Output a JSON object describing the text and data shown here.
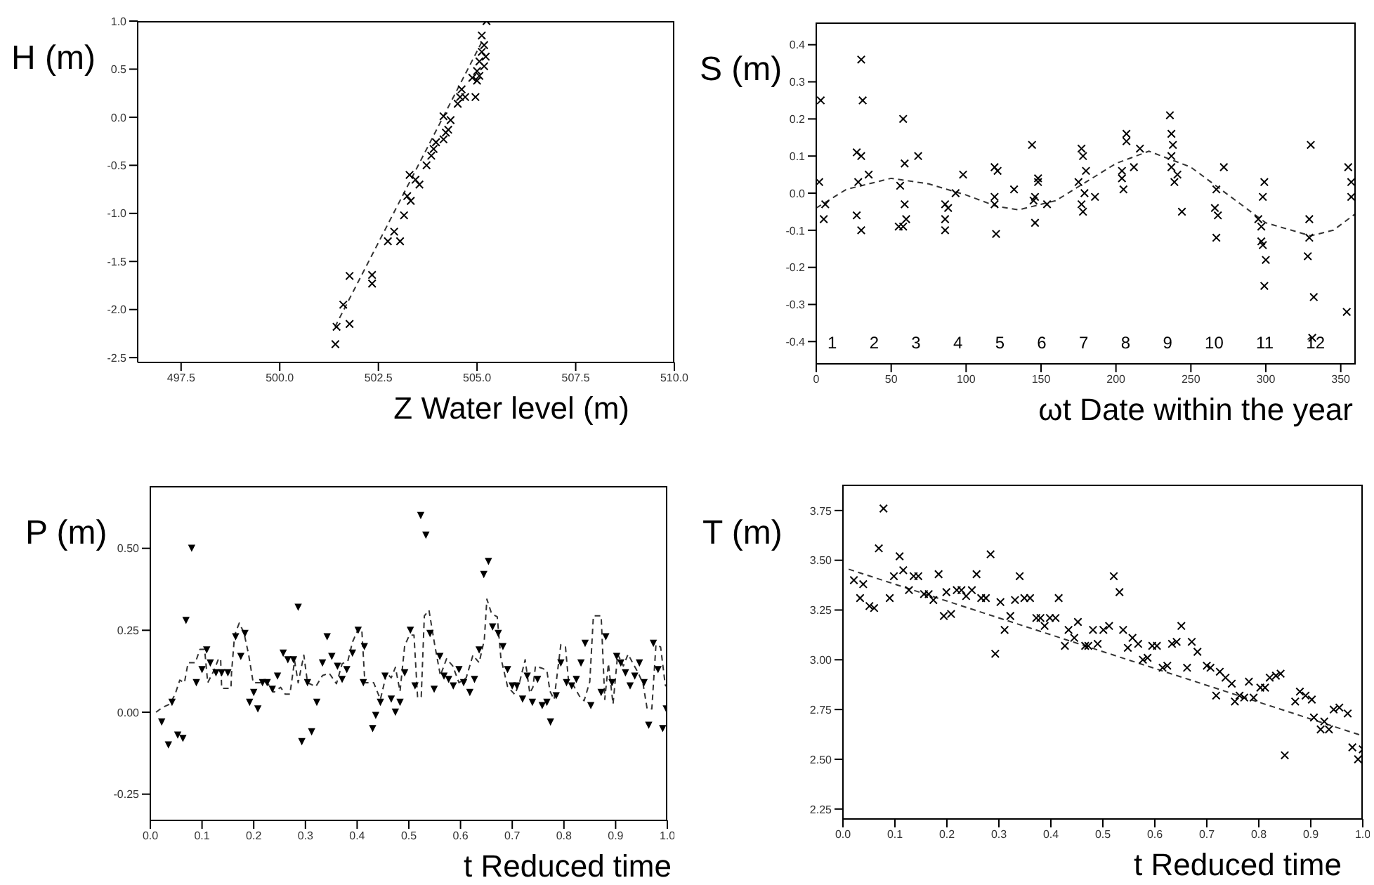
{
  "chart_data": [
    {
      "type": "scatter",
      "xlabel": "Z Water level (m)",
      "ylabel": "H (m)",
      "xlim": [
        496.4,
        510.0
      ],
      "ylim": [
        -2.55,
        1.0
      ],
      "xticks": [
        497.5,
        {
          "value": 500,
          "label": "500.0"
        },
        502.5,
        {
          "value": 505,
          "label": "505.0"
        },
        507.5,
        {
          "value": 510,
          "label": "510.0"
        }
      ],
      "yticks": [
        {
          "value": -2.5,
          "label": "-2.5"
        },
        {
          "value": -2,
          "label": "-2.0"
        },
        {
          "value": -1.5,
          "label": "-1.5"
        },
        {
          "value": -1,
          "label": "-1.0"
        },
        {
          "value": -0.5,
          "label": "-0.5"
        },
        {
          "value": 0,
          "label": "0.0"
        },
        {
          "value": 0.5,
          "label": "0.5"
        },
        {
          "value": 1,
          "label": "1.0"
        }
      ],
      "grid": false,
      "legend": false,
      "series": [
        {
          "type": "scatter",
          "color": "#000000",
          "marker": "cross",
          "x": [
            501.41,
            501.44,
            501.61,
            501.77,
            501.77,
            502.34,
            502.34,
            502.74,
            502.9,
            503.05,
            503.15,
            503.32,
            503.23,
            503.29,
            503.44,
            503.54,
            503.72,
            503.84,
            503.9,
            503.96,
            504.15,
            504.21,
            504.27,
            504.15,
            504.33,
            504.51,
            504.57,
            504.7,
            504.61,
            504.96,
            504.88,
            505.0,
            505.0,
            505.06,
            505.12,
            505.18,
            505.12,
            505.24,
            505.18,
            505.06,
            505.22
          ],
          "values": [
            -2.36,
            -2.18,
            -1.95,
            -2.15,
            -1.65,
            -1.64,
            -1.73,
            -1.29,
            -1.19,
            -1.29,
            -1.02,
            -0.87,
            -0.82,
            -0.6,
            -0.65,
            -0.7,
            -0.5,
            -0.4,
            -0.33,
            -0.26,
            -0.23,
            -0.16,
            -0.13,
            0.01,
            -0.03,
            0.14,
            0.21,
            0.21,
            0.29,
            0.21,
            0.41,
            0.38,
            0.48,
            0.58,
            0.68,
            0.75,
            0.85,
            1.0,
            0.53,
            0.43,
            0.63
          ]
        },
        {
          "type": "line",
          "color": "#333333",
          "line_style": "dashed",
          "marker": "none",
          "x": [
            501.4,
            505.18
          ],
          "values": [
            -2.18,
            0.83
          ]
        }
      ]
    },
    {
      "type": "scatter",
      "xlabel": "ωt Date within the year",
      "ylabel": "S (m)",
      "xlim": [
        0,
        360
      ],
      "ylim": [
        -0.46,
        0.46
      ],
      "xticks": [
        0,
        50,
        100,
        150,
        200,
        250,
        300,
        350
      ],
      "yticks": [
        {
          "value": -0.4,
          "label": "-0.4"
        },
        {
          "value": -0.3,
          "label": "-0.3"
        },
        {
          "value": -0.2,
          "label": "-0.2"
        },
        {
          "value": -0.1,
          "label": "-0.1"
        },
        {
          "value": 0,
          "label": "0.0"
        },
        {
          "value": 0.1,
          "label": "0.1"
        },
        {
          "value": 0.2,
          "label": "0.2"
        },
        {
          "value": 0.3,
          "label": "0.3"
        },
        {
          "value": 0.4,
          "label": "0.4"
        }
      ],
      "grid": false,
      "legend": false,
      "annotations": [
        "1 2 3 4 5 6 7 8 9 10 11 12"
      ],
      "series": [
        {
          "type": "scatter",
          "color": "#000000",
          "marker": "cross",
          "x": [
            2,
            3,
            5,
            6,
            27,
            28,
            27,
            30,
            30,
            31,
            30,
            35,
            56,
            55,
            58,
            58,
            59,
            59,
            60,
            68,
            86,
            86,
            86,
            88,
            93,
            98,
            119,
            121,
            119,
            119,
            120,
            132,
            144,
            145,
            146,
            148,
            148,
            146,
            154,
            175,
            177,
            178,
            177,
            178,
            180,
            179,
            186,
            204,
            204,
            205,
            207,
            207,
            212,
            216,
            236,
            237,
            238,
            237,
            237,
            239,
            241,
            244,
            267,
            266,
            268,
            267,
            272,
            295,
            297,
            297,
            298,
            299,
            298,
            300,
            299,
            328,
            329,
            329,
            330,
            332,
            331,
            354,
            355,
            357,
            357
          ],
          "values": [
            0.03,
            0.25,
            -0.07,
            -0.03,
            -0.06,
            0.03,
            0.11,
            0.1,
            0.36,
            0.25,
            -0.1,
            0.05,
            0.02,
            -0.09,
            -0.09,
            0.2,
            0.08,
            -0.03,
            -0.07,
            0.1,
            -0.03,
            -0.1,
            -0.07,
            -0.04,
            0.0,
            0.05,
            0.07,
            0.06,
            -0.01,
            -0.03,
            -0.11,
            0.01,
            0.13,
            -0.02,
            -0.08,
            0.04,
            0.03,
            -0.01,
            -0.03,
            0.03,
            0.12,
            0.1,
            -0.03,
            -0.05,
            0.06,
            0.0,
            -0.01,
            0.06,
            0.04,
            0.01,
            0.16,
            0.14,
            0.07,
            0.12,
            0.21,
            0.16,
            0.13,
            0.1,
            0.07,
            0.03,
            0.05,
            -0.05,
            0.01,
            -0.04,
            -0.06,
            -0.12,
            0.07,
            -0.07,
            -0.09,
            -0.13,
            -0.14,
            0.03,
            -0.01,
            -0.18,
            -0.25,
            -0.17,
            -0.12,
            -0.07,
            0.13,
            -0.28,
            -0.39,
            -0.32,
            0.07,
            0.03,
            -0.01
          ]
        },
        {
          "type": "line",
          "color": "#333333",
          "line_style": "dashed",
          "marker": "none",
          "x": [
            0,
            20,
            50,
            75,
            100,
            120,
            135,
            160,
            180,
            200,
            222,
            250,
            270,
            300,
            330,
            345,
            360
          ],
          "values": [
            -0.04,
            0.01,
            0.04,
            0.025,
            -0.005,
            -0.035,
            -0.045,
            -0.02,
            0.03,
            0.08,
            0.113,
            0.07,
            0.01,
            -0.08,
            -0.115,
            -0.1,
            -0.055
          ]
        }
      ]
    },
    {
      "type": "scatter",
      "xlabel": "t Reduced time",
      "ylabel": "P (m)",
      "xlim": [
        0,
        1.0
      ],
      "ylim": [
        -0.33,
        0.69
      ],
      "xticks": [
        {
          "value": 0,
          "label": "0.0"
        },
        0.1,
        0.2,
        0.3,
        0.4,
        0.5,
        0.6,
        0.7,
        0.8,
        0.9,
        {
          "value": 1,
          "label": "1.0"
        }
      ],
      "yticks": [
        {
          "value": -0.25,
          "label": "-0.25"
        },
        {
          "value": 0,
          "label": "0.00"
        },
        0.25,
        {
          "value": 0.5,
          "label": "0.50"
        }
      ],
      "grid": false,
      "legend": false,
      "series": [
        {
          "type": "scatter",
          "color": "#000000",
          "marker": "triangle",
          "x": [
            0.022,
            0.035,
            0.042,
            0.053,
            0.063,
            0.069,
            0.08,
            0.089,
            0.1,
            0.109,
            0.116,
            0.127,
            0.138,
            0.15,
            0.165,
            0.175,
            0.183,
            0.192,
            0.2,
            0.208,
            0.217,
            0.226,
            0.236,
            0.246,
            0.257,
            0.266,
            0.277,
            0.286,
            0.293,
            0.304,
            0.312,
            0.322,
            0.333,
            0.342,
            0.351,
            0.362,
            0.371,
            0.38,
            0.391,
            0.402,
            0.414,
            0.412,
            0.43,
            0.436,
            0.445,
            0.454,
            0.466,
            0.474,
            0.483,
            0.492,
            0.503,
            0.512,
            0.523,
            0.533,
            0.541,
            0.549,
            0.56,
            0.568,
            0.577,
            0.586,
            0.597,
            0.606,
            0.618,
            0.627,
            0.636,
            0.645,
            0.654,
            0.662,
            0.673,
            0.682,
            0.691,
            0.7,
            0.709,
            0.72,
            0.729,
            0.739,
            0.749,
            0.758,
            0.767,
            0.774,
            0.785,
            0.794,
            0.805,
            0.815,
            0.824,
            0.833,
            0.841,
            0.852,
            0.872,
            0.881,
            0.893,
            0.902,
            0.91,
            0.919,
            0.928,
            0.937,
            0.946,
            0.955,
            0.964,
            0.973,
            0.982,
            0.991,
            0.998
          ],
          "values": [
            -0.03,
            -0.1,
            0.03,
            -0.07,
            -0.08,
            0.28,
            0.5,
            0.09,
            0.13,
            0.19,
            0.15,
            0.12,
            0.12,
            0.12,
            0.23,
            0.17,
            0.24,
            0.03,
            0.06,
            0.01,
            0.09,
            0.09,
            0.07,
            0.11,
            0.18,
            0.16,
            0.16,
            0.32,
            -0.09,
            0.09,
            -0.06,
            0.03,
            0.15,
            0.23,
            0.17,
            0.14,
            0.1,
            0.13,
            0.18,
            0.25,
            0.2,
            0.09,
            -0.05,
            -0.01,
            0.03,
            0.11,
            0.04,
            0.0,
            0.03,
            0.12,
            0.25,
            0.08,
            0.6,
            0.54,
            0.24,
            0.07,
            0.17,
            0.11,
            0.1,
            0.08,
            0.13,
            0.09,
            0.06,
            0.1,
            0.19,
            0.42,
            0.46,
            0.26,
            0.24,
            0.2,
            0.13,
            0.08,
            0.08,
            0.04,
            0.11,
            0.03,
            0.1,
            0.02,
            0.03,
            -0.03,
            0.05,
            0.15,
            0.09,
            0.08,
            0.1,
            0.15,
            0.21,
            0.02,
            0.06,
            0.23,
            0.09,
            0.17,
            0.15,
            0.12,
            0.08,
            0.11,
            0.15,
            0.09,
            -0.04,
            0.21,
            0.13,
            -0.05,
            0.01
          ]
        },
        {
          "type": "line",
          "color": "#333333",
          "line_style": "dashed",
          "marker": "none",
          "x": [
            0.011,
            0.024,
            0.038,
            0.048,
            0.057,
            0.066,
            0.073,
            0.087,
            0.096,
            0.105,
            0.111,
            0.123,
            0.132,
            0.136,
            0.138,
            0.156,
            0.157,
            0.163,
            0.172,
            0.181,
            0.19,
            0.199,
            0.212,
            0.226,
            0.239,
            0.252,
            0.261,
            0.27,
            0.279,
            0.286,
            0.297,
            0.304,
            0.32,
            0.333,
            0.346,
            0.36,
            0.371,
            0.382,
            0.391,
            0.402,
            0.409,
            0.415,
            0.432,
            0.445,
            0.457,
            0.466,
            0.474,
            0.483,
            0.492,
            0.501,
            0.51,
            0.517,
            0.524,
            0.53,
            0.539,
            0.55,
            0.561,
            0.573,
            0.585,
            0.597,
            0.611,
            0.624,
            0.636,
            0.646,
            0.651,
            0.66,
            0.671,
            0.678,
            0.691,
            0.705,
            0.714,
            0.725,
            0.734,
            0.74,
            0.745,
            0.758,
            0.767,
            0.773,
            0.781,
            0.794,
            0.803,
            0.809,
            0.818,
            0.83,
            0.839,
            0.85,
            0.857,
            0.872,
            0.879,
            0.886,
            0.895,
            0.904,
            0.915,
            0.924,
            0.935,
            0.944,
            0.953,
            0.961,
            0.97,
            0.978,
            0.987,
            0.996,
            1.0
          ],
          "values": [
            0.0,
            0.015,
            0.025,
            0.055,
            0.098,
            0.09,
            0.151,
            0.151,
            0.192,
            0.192,
            0.09,
            0.127,
            0.163,
            0.163,
            0.073,
            0.073,
            0.119,
            0.235,
            0.272,
            0.243,
            0.177,
            0.09,
            0.09,
            0.09,
            0.061,
            0.076,
            0.055,
            0.055,
            0.157,
            0.09,
            0.174,
            0.09,
            0.078,
            0.112,
            0.119,
            0.087,
            0.148,
            0.156,
            0.214,
            0.253,
            0.253,
            0.09,
            0.09,
            0.039,
            0.119,
            0.105,
            0.137,
            0.064,
            0.203,
            0.235,
            0.235,
            0.044,
            0.047,
            0.294,
            0.311,
            0.206,
            0.112,
            0.163,
            0.141,
            0.09,
            0.105,
            0.174,
            0.151,
            0.221,
            0.345,
            0.301,
            0.291,
            0.166,
            0.078,
            0.054,
            0.09,
            0.16,
            0.058,
            0.076,
            0.141,
            0.134,
            0.127,
            0.064,
            0.039,
            0.206,
            0.199,
            0.093,
            0.083,
            0.049,
            0.035,
            0.093,
            0.294,
            0.294,
            0.039,
            0.148,
            0.025,
            0.177,
            0.141,
            0.177,
            0.145,
            0.119,
            0.087,
            0.01,
            0.01,
            0.206,
            0.199,
            0.083,
            0.076
          ]
        }
      ]
    },
    {
      "type": "scatter",
      "xlabel": "t Reduced time",
      "ylabel": "T (m)",
      "xlim": [
        0,
        1.0
      ],
      "ylim": [
        2.2,
        3.88
      ],
      "xticks": [
        {
          "value": 0,
          "label": "0.0"
        },
        0.1,
        0.2,
        0.3,
        0.4,
        0.5,
        0.6,
        0.7,
        0.8,
        0.9,
        {
          "value": 1,
          "label": "1.0"
        }
      ],
      "yticks": [
        2.25,
        {
          "value": 2.5,
          "label": "2.50"
        },
        2.75,
        {
          "value": 3,
          "label": "3.00"
        },
        3.25,
        {
          "value": 3.5,
          "label": "3.50"
        },
        3.75
      ],
      "grid": false,
      "legend": false,
      "series": [
        {
          "type": "scatter",
          "color": "#000000",
          "marker": "cross",
          "x": [
            0.021,
            0.033,
            0.039,
            0.051,
            0.06,
            0.069,
            0.078,
            0.09,
            0.098,
            0.109,
            0.116,
            0.127,
            0.136,
            0.145,
            0.156,
            0.165,
            0.174,
            0.184,
            0.194,
            0.199,
            0.208,
            0.219,
            0.228,
            0.237,
            0.248,
            0.257,
            0.266,
            0.275,
            0.284,
            0.293,
            0.303,
            0.311,
            0.322,
            0.331,
            0.34,
            0.349,
            0.36,
            0.372,
            0.38,
            0.388,
            0.398,
            0.409,
            0.415,
            0.427,
            0.434,
            0.445,
            0.452,
            0.466,
            0.472,
            0.481,
            0.49,
            0.501,
            0.512,
            0.521,
            0.532,
            0.539,
            0.548,
            0.557,
            0.568,
            0.577,
            0.586,
            0.595,
            0.604,
            0.615,
            0.624,
            0.633,
            0.642,
            0.651,
            0.662,
            0.671,
            0.682,
            0.7,
            0.707,
            0.718,
            0.725,
            0.736,
            0.748,
            0.754,
            0.763,
            0.772,
            0.781,
            0.79,
            0.803,
            0.812,
            0.821,
            0.833,
            0.842,
            0.85,
            0.87,
            0.879,
            0.89,
            0.902,
            0.906,
            0.919,
            0.926,
            0.935,
            0.944,
            0.955,
            0.971,
            0.98,
            0.991,
            1.0
          ],
          "values": [
            3.4,
            3.31,
            3.38,
            3.27,
            3.26,
            3.56,
            3.76,
            3.31,
            3.42,
            3.52,
            3.45,
            3.35,
            3.42,
            3.42,
            3.33,
            3.33,
            3.3,
            3.43,
            3.22,
            3.34,
            3.23,
            3.35,
            3.35,
            3.32,
            3.35,
            3.43,
            3.31,
            3.31,
            3.53,
            3.03,
            3.29,
            3.15,
            3.22,
            3.3,
            3.42,
            3.31,
            3.31,
            3.21,
            3.21,
            3.17,
            3.21,
            3.21,
            3.31,
            3.07,
            3.15,
            3.11,
            3.19,
            3.07,
            3.07,
            3.15,
            3.08,
            3.15,
            3.17,
            3.42,
            3.34,
            3.15,
            3.06,
            3.11,
            3.08,
            3.0,
            3.01,
            3.07,
            3.07,
            2.96,
            2.97,
            3.08,
            3.09,
            3.17,
            2.96,
            3.09,
            3.04,
            2.97,
            2.96,
            2.82,
            2.94,
            2.91,
            2.88,
            2.79,
            2.82,
            2.81,
            2.89,
            2.81,
            2.86,
            2.86,
            2.91,
            2.92,
            2.93,
            2.52,
            2.79,
            2.84,
            2.82,
            2.8,
            2.71,
            2.65,
            2.69,
            2.65,
            2.75,
            2.76,
            2.73,
            2.56,
            2.5,
            2.55
          ]
        },
        {
          "type": "line",
          "color": "#333333",
          "line_style": "dashed",
          "marker": "none",
          "x": [
            0.011,
            0.996
          ],
          "values": [
            3.455,
            2.621
          ]
        }
      ]
    }
  ]
}
